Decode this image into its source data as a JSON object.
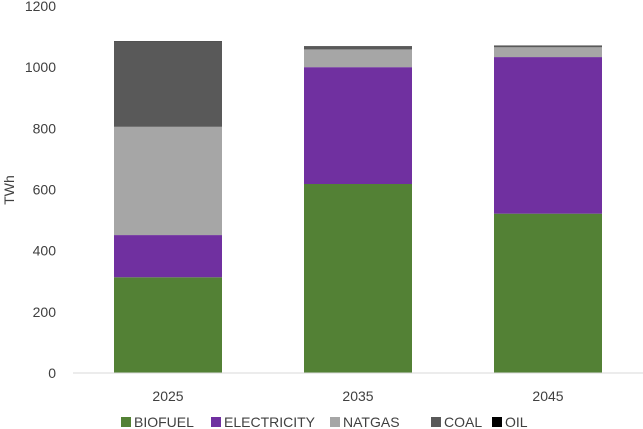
{
  "chart_data": {
    "type": "bar",
    "stacked": true,
    "categories": [
      "2025",
      "2035",
      "2045"
    ],
    "series": [
      {
        "name": "BIOFUEL",
        "color": "#538135",
        "values": [
          313,
          618,
          521
        ]
      },
      {
        "name": "ELECTRICITY",
        "color": "#7030a0",
        "values": [
          138,
          382,
          512
        ]
      },
      {
        "name": "NATGAS",
        "color": "#a6a6a6",
        "values": [
          354,
          58,
          32
        ]
      },
      {
        "name": "COAL",
        "color": "#595959",
        "values": [
          278,
          8,
          5
        ]
      },
      {
        "name": "OIL",
        "color": "#000000",
        "values": [
          2,
          2,
          1
        ]
      }
    ],
    "title": "",
    "xlabel": "",
    "ylabel": "TWh",
    "ylim": [
      0,
      1200
    ],
    "yticks": [
      "0",
      "200",
      "400",
      "600",
      "800",
      "1000",
      "1200"
    ],
    "grid": false,
    "legend_position": "bottom"
  }
}
